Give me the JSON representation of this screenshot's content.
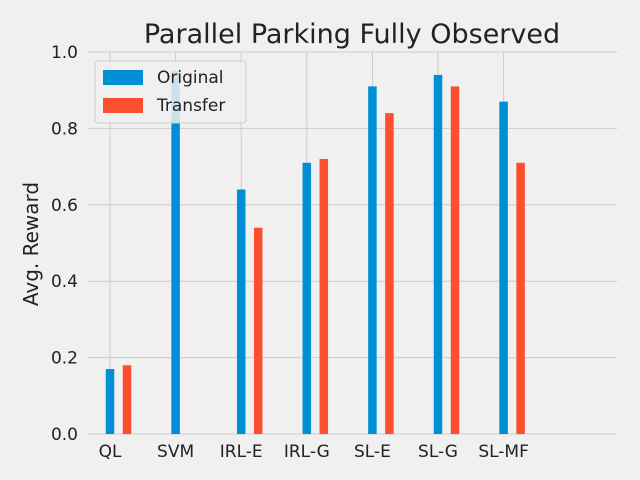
{
  "chart_data": {
    "type": "bar",
    "title": "Parallel Parking Fully Observed",
    "xlabel": "",
    "ylabel": "Avg. Reward",
    "categories": [
      "QL",
      "SVM",
      "IRL-E",
      "IRL-G",
      "SL-E",
      "SL-G",
      "SL-MF"
    ],
    "series": [
      {
        "name": "Original",
        "color": "#008fd5",
        "values": [
          0.17,
          0.95,
          0.64,
          0.71,
          0.91,
          0.94,
          0.87
        ]
      },
      {
        "name": "Transfer",
        "color": "#fc4f30",
        "values": [
          0.18,
          null,
          0.54,
          0.72,
          0.84,
          0.91,
          0.71
        ]
      }
    ],
    "ylim": [
      0,
      1.0
    ],
    "yticks": [
      "0.0",
      "0.2",
      "0.4",
      "0.6",
      "0.8",
      "1.0"
    ],
    "grid": true,
    "legend_position": "top-left"
  }
}
